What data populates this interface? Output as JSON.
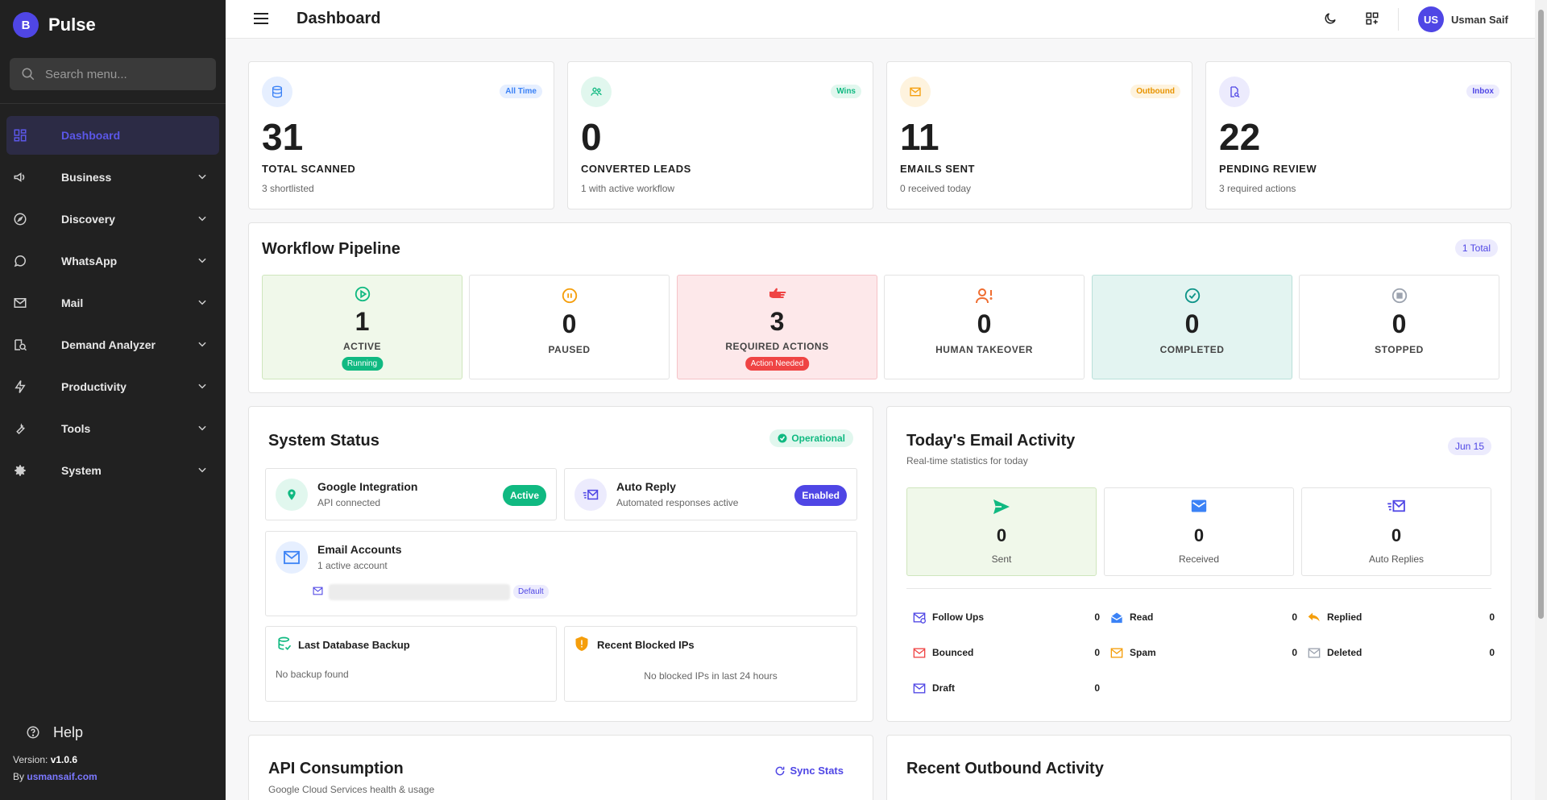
{
  "sidebar": {
    "brand_initial": "B",
    "brand_name": "Pulse",
    "search_placeholder": "Search menu...",
    "items": [
      {
        "label": "Dashboard",
        "icon": "dashboard-icon"
      },
      {
        "label": "Business",
        "icon": "megaphone-icon"
      },
      {
        "label": "Discovery",
        "icon": "compass-icon"
      },
      {
        "label": "WhatsApp",
        "icon": "whatsapp-icon"
      },
      {
        "label": "Mail",
        "icon": "mail-icon"
      },
      {
        "label": "Demand Analyzer",
        "icon": "search-analytics-icon"
      },
      {
        "label": "Productivity",
        "icon": "bolt-icon"
      },
      {
        "label": "Tools",
        "icon": "wrench-icon"
      },
      {
        "label": "System",
        "icon": "gear-icon"
      }
    ],
    "help_label": "Help",
    "version_label": "Version:",
    "version_value": "v1.0.6",
    "by_label": "By",
    "by_link": "usmansaif.com"
  },
  "topbar": {
    "title": "Dashboard",
    "avatar_initials": "US",
    "username": "Usman Saif"
  },
  "stats": [
    {
      "value": "31",
      "label": "TOTAL SCANNED",
      "sub": "3 shortlisted",
      "pill": "All Time",
      "icon": "database-icon",
      "color": "#3b82f6",
      "bg": "#e6efff",
      "pill_bg": "#e6efff"
    },
    {
      "value": "0",
      "label": "CONVERTED LEADS",
      "sub": "1 with active workflow",
      "pill": "Wins",
      "icon": "users-icon",
      "color": "#10b981",
      "bg": "#e1f7ee",
      "pill_bg": "#e1f7ee"
    },
    {
      "value": "11",
      "label": "EMAILS SENT",
      "sub": "0 received today",
      "pill": "Outbound",
      "icon": "envelope-icon",
      "color": "#f59e0b",
      "bg": "#fef3de",
      "pill_bg": "#fef3de"
    },
    {
      "value": "22",
      "label": "PENDING REVIEW",
      "sub": "3 required actions",
      "pill": "Inbox",
      "icon": "file-search-icon",
      "color": "#4f46e5",
      "bg": "#ecebfd",
      "pill_bg": "#ecebfd"
    }
  ],
  "workflow": {
    "title": "Workflow Pipeline",
    "total": "1 Total",
    "boxes": [
      {
        "value": "1",
        "label": "ACTIVE",
        "badge": "Running",
        "icon": "play-circle-icon",
        "color": "#10b981",
        "bg": "#f0f8ea",
        "border": "#cfe6bd",
        "badge_bg": "#10b981"
      },
      {
        "value": "0",
        "label": "PAUSED",
        "badge": "",
        "icon": "pause-circle-icon",
        "color": "#f59e0b",
        "bg": "#ffffff",
        "border": "#e3e3e3",
        "badge_bg": ""
      },
      {
        "value": "3",
        "label": "REQUIRED ACTIONS",
        "badge": "Action Needed",
        "icon": "hand-point-icon",
        "color": "#ef4444",
        "bg": "#fde8ea",
        "border": "#f5c2c7",
        "badge_bg": "#ef4444"
      },
      {
        "value": "0",
        "label": "HUMAN TAKEOVER",
        "badge": "",
        "icon": "user-alert-icon",
        "color": "#ef6c2f",
        "bg": "#ffffff",
        "border": "#e3e3e3",
        "badge_bg": ""
      },
      {
        "value": "0",
        "label": "COMPLETED",
        "badge": "",
        "icon": "check-circle-icon",
        "color": "#0d9488",
        "bg": "#e3f4f1",
        "border": "#b9e0d9",
        "badge_bg": ""
      },
      {
        "value": "0",
        "label": "STOPPED",
        "badge": "",
        "icon": "stop-circle-icon",
        "color": "#9ca3af",
        "bg": "#ffffff",
        "border": "#e3e3e3",
        "badge_bg": ""
      }
    ]
  },
  "system_status": {
    "title": "System Status",
    "status": "Operational",
    "google": {
      "title": "Google Integration",
      "sub": "API connected",
      "button": "Active"
    },
    "auto_reply": {
      "title": "Auto Reply",
      "sub": "Automated responses active",
      "button": "Enabled"
    },
    "email_accounts": {
      "title": "Email Accounts",
      "sub": "1 active account",
      "default_label": "Default"
    },
    "backup": {
      "title": "Last Database Backup",
      "sub": "No backup found"
    },
    "blocked": {
      "title": "Recent Blocked IPs",
      "sub": "No blocked IPs in last 24 hours"
    }
  },
  "email_activity": {
    "title": "Today's Email Activity",
    "sub": "Real-time statistics for today",
    "date": "Jun 15",
    "metrics": [
      {
        "value": "0",
        "label": "Sent",
        "icon": "send-icon",
        "color": "#10b981",
        "bg": "#f0f8ea"
      },
      {
        "value": "0",
        "label": "Received",
        "icon": "inbox-mail-icon",
        "color": "#3b82f6",
        "bg": "#ffffff"
      },
      {
        "value": "0",
        "label": "Auto Replies",
        "icon": "auto-reply-icon",
        "color": "#4f46e5",
        "bg": "#ffffff"
      }
    ],
    "rows": [
      {
        "label": "Follow Ups",
        "value": "0",
        "icon": "follow-up-icon",
        "color": "#4f46e5"
      },
      {
        "label": "Read",
        "value": "0",
        "icon": "open-mail-icon",
        "color": "#3b82f6"
      },
      {
        "label": "Replied",
        "value": "0",
        "icon": "reply-icon",
        "color": "#f59e0b"
      },
      {
        "label": "Bounced",
        "value": "0",
        "icon": "bounced-mail-icon",
        "color": "#ef4444"
      },
      {
        "label": "Spam",
        "value": "0",
        "icon": "spam-mail-icon",
        "color": "#f59e0b"
      },
      {
        "label": "Deleted",
        "value": "0",
        "icon": "deleted-mail-icon",
        "color": "#9ca3af"
      },
      {
        "label": "Draft",
        "value": "0",
        "icon": "draft-mail-icon",
        "color": "#4f46e5"
      }
    ]
  },
  "api": {
    "title": "API Consumption",
    "sub": "Google Cloud Services health & usage",
    "sync": "Sync Stats"
  },
  "outbound": {
    "title": "Recent Outbound Activity"
  }
}
